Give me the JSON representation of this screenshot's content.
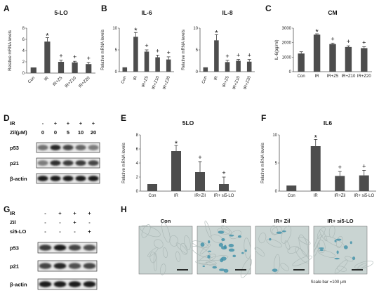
{
  "panel_labels": {
    "A": "A",
    "B": "B",
    "C": "C",
    "D": "D",
    "E": "E",
    "F": "F",
    "G": "G",
    "H": "H"
  },
  "chart_data": [
    {
      "id": "A",
      "type": "bar",
      "title": "5-LO",
      "ylabel": "Relative mRNA levels",
      "ylim": [
        0,
        8
      ],
      "yticks": [
        0,
        2,
        4,
        6,
        8
      ],
      "categories": [
        "Con",
        "IR",
        "IR+Z5",
        "IR+Z10",
        "IR+Z20"
      ],
      "values": [
        1.0,
        5.6,
        2.0,
        1.9,
        1.6
      ],
      "errors": [
        0,
        0.7,
        0.3,
        0.2,
        0.3
      ],
      "marks": [
        "",
        "*",
        "+",
        "+",
        "+"
      ]
    },
    {
      "id": "B1",
      "type": "bar",
      "title": "IL-6",
      "ylabel": "Relative mRNA levels",
      "ylim": [
        0,
        10
      ],
      "yticks": [
        0,
        5,
        10
      ],
      "categories": [
        "Con",
        "IR",
        "IR+Z5",
        "IR+Z10",
        "IR+Z20"
      ],
      "values": [
        1.0,
        8.0,
        4.6,
        3.3,
        2.8
      ],
      "errors": [
        0,
        1.0,
        0.4,
        0.5,
        0.6
      ],
      "marks": [
        "",
        "*",
        "+",
        "+",
        "+"
      ]
    },
    {
      "id": "B2",
      "type": "bar",
      "title": "IL-8",
      "ylabel": "Relative mRNA levels",
      "ylim": [
        0,
        10
      ],
      "yticks": [
        0,
        5,
        10
      ],
      "categories": [
        "Con",
        "IR",
        "IR+Z5",
        "IR+Z10",
        "IR+Z20"
      ],
      "values": [
        1.0,
        7.2,
        2.2,
        2.5,
        2.3
      ],
      "errors": [
        0,
        1.3,
        0.4,
        0.3,
        0.5
      ],
      "marks": [
        "",
        "*",
        "+",
        "+",
        "+"
      ]
    },
    {
      "id": "C",
      "type": "bar",
      "title": "CM",
      "ylabel": "IL-6(pg/ml)",
      "ylim": [
        0,
        3000
      ],
      "yticks": [
        0,
        1000,
        2000,
        3000
      ],
      "categories": [
        "Con",
        "IR",
        "IR+Z5",
        "IR+Z10",
        "IR+Z20"
      ],
      "values": [
        1250,
        2550,
        1900,
        1700,
        1620
      ],
      "errors": [
        120,
        60,
        70,
        80,
        90
      ],
      "marks": [
        "",
        "*",
        "+",
        "+",
        "+"
      ]
    },
    {
      "id": "E",
      "type": "bar",
      "title": "5LO",
      "ylabel": "Relative mRNA levels",
      "ylim": [
        0,
        8
      ],
      "yticks": [
        0,
        2,
        4,
        6,
        8
      ],
      "categories": [
        "Con",
        "IR",
        "IR+Zil",
        "IR+ si5-LO"
      ],
      "values": [
        1.0,
        5.7,
        2.7,
        1.0
      ],
      "errors": [
        0,
        0.8,
        1.5,
        1.0
      ],
      "marks": [
        "",
        "*",
        "+",
        "+"
      ]
    },
    {
      "id": "F",
      "type": "bar",
      "title": "IL6",
      "ylabel": "Relative mRNA levels",
      "ylim": [
        0,
        10
      ],
      "yticks": [
        0,
        5,
        10
      ],
      "categories": [
        "Con",
        "IR",
        "IR+Zil",
        "IR+ si5-LO"
      ],
      "values": [
        1.0,
        8.0,
        2.7,
        2.8
      ],
      "errors": [
        0,
        1.2,
        0.8,
        0.9
      ],
      "marks": [
        "",
        "*",
        "+",
        "+"
      ]
    }
  ],
  "blot_D": {
    "rows": [
      {
        "label": "IR",
        "values": [
          "-",
          "+",
          "+",
          "+",
          "+"
        ]
      },
      {
        "label": "Zil(μM)",
        "values": [
          "0",
          "0",
          "5",
          "10",
          "20"
        ]
      }
    ],
    "bands": [
      "p53",
      "p21",
      "β-actin"
    ],
    "intensities": [
      [
        0.55,
        0.9,
        0.75,
        0.6,
        0.5
      ],
      [
        0.5,
        0.85,
        0.8,
        0.8,
        0.75
      ],
      [
        0.95,
        0.95,
        0.95,
        0.95,
        0.95
      ]
    ]
  },
  "blot_G": {
    "rows": [
      {
        "label": "IR",
        "values": [
          "-",
          "+",
          "+",
          "+"
        ]
      },
      {
        "label": "Zil",
        "values": [
          "-",
          "-",
          "+",
          "-"
        ]
      },
      {
        "label": "si5-LO",
        "values": [
          "-",
          "-",
          "-",
          "+"
        ]
      }
    ],
    "bands": [
      "p53",
      "p21",
      "β-actin"
    ],
    "intensities": [
      [
        0.8,
        0.95,
        0.75,
        0.7
      ],
      [
        0.75,
        0.9,
        0.7,
        0.75
      ],
      [
        0.95,
        0.95,
        0.95,
        0.95
      ]
    ]
  },
  "micro_H": {
    "titles": [
      "Con",
      "IR",
      "IR+ Zil",
      "IR+ si5-LO"
    ],
    "scale_bar": "Scale bar =100 μm"
  }
}
